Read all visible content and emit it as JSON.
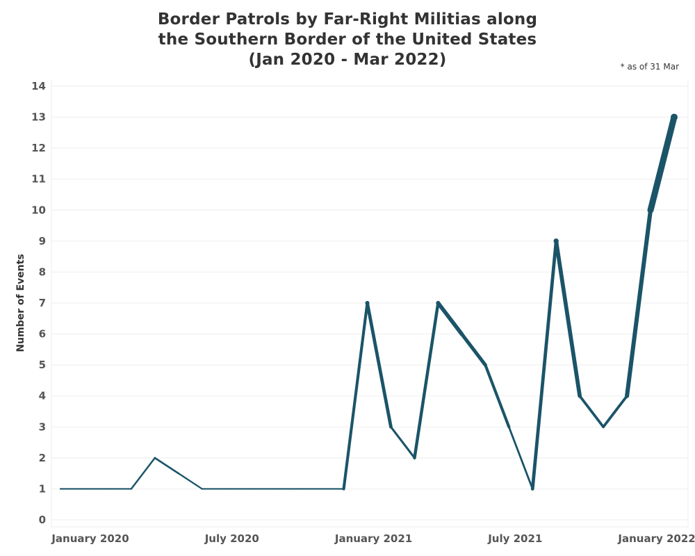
{
  "title": {
    "lines": [
      "Border Patrols by Far-Right Militias along",
      "the Southern Border of the United States",
      "(Jan 2020 - Mar 2022)"
    ]
  },
  "note": "* as of 31 Mar",
  "colors": {
    "line": "#1b5468",
    "grid": "#eeeeee"
  },
  "chart_data": {
    "type": "line",
    "title": "Border Patrols by Far-Right Militias along the Southern Border of the United States (Jan 2020 - Mar 2022)",
    "xlabel": "",
    "ylabel": "Number of Events",
    "x": [
      "2020-01",
      "2020-02",
      "2020-03",
      "2020-04",
      "2020-05",
      "2020-06",
      "2020-07",
      "2020-08",
      "2020-09",
      "2020-10",
      "2020-11",
      "2020-12",
      "2021-01",
      "2021-02",
      "2021-03",
      "2021-04",
      "2021-05",
      "2021-06",
      "2021-07",
      "2021-08",
      "2021-09",
      "2021-10",
      "2021-11",
      "2021-12",
      "2022-01",
      "2022-02",
      "2022-03"
    ],
    "values": [
      1,
      1,
      1,
      1,
      2,
      1.5,
      1,
      1,
      1,
      1,
      1,
      1,
      1,
      7,
      3,
      2,
      7,
      6,
      5,
      3,
      1,
      9,
      4,
      3,
      4,
      10,
      13
    ],
    "ylim": [
      0,
      14
    ],
    "yticks": [
      0,
      1,
      2,
      3,
      4,
      5,
      6,
      7,
      8,
      9,
      10,
      11,
      12,
      13,
      14
    ],
    "xtick_labels": [
      {
        "label": "January 2020",
        "x": "2020-01"
      },
      {
        "label": "July 2020",
        "x": "2020-07"
      },
      {
        "label": "January 2021",
        "x": "2021-01"
      },
      {
        "label": "July 2021",
        "x": "2021-07"
      },
      {
        "label": "January 2022",
        "x": "2022-01"
      }
    ],
    "line_width_encodes_value": true,
    "grid": true
  }
}
